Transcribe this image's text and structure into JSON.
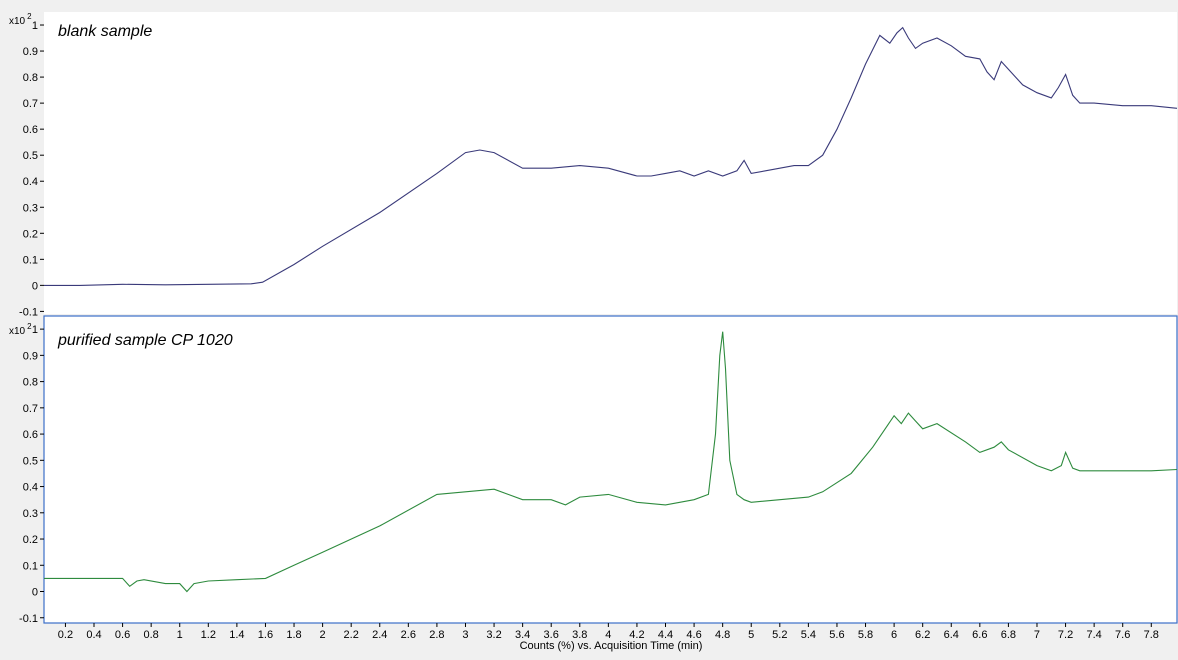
{
  "chart_data": [
    {
      "type": "line",
      "title": "blank sample",
      "y_multiplier_label": "x10",
      "y_multiplier_exp": "2",
      "xlim": [
        0.05,
        7.98
      ],
      "ylim": [
        -0.11,
        1.05
      ],
      "y_ticks": [
        -0.1,
        0,
        0.1,
        0.2,
        0.3,
        0.4,
        0.5,
        0.6,
        0.7,
        0.8,
        0.9,
        1
      ],
      "y_tick_labels": [
        "-0.1",
        "0",
        "0.1",
        "0.2",
        "0.3",
        "0.4",
        "0.5",
        "0.6",
        "0.7",
        "0.8",
        "0.9",
        "1"
      ],
      "line_color": "#3a3a7a",
      "series": [
        {
          "x": [
            0.05,
            0.3,
            0.6,
            0.9,
            1.2,
            1.5,
            1.58,
            1.8,
            2.0,
            2.4,
            2.8,
            3.0,
            3.1,
            3.2,
            3.4,
            3.6,
            3.8,
            4.0,
            4.2,
            4.3,
            4.4,
            4.5,
            4.6,
            4.7,
            4.8,
            4.9,
            4.95,
            5.0,
            5.1,
            5.2,
            5.3,
            5.4,
            5.5,
            5.6,
            5.7,
            5.8,
            5.9,
            5.97,
            6.02,
            6.06,
            6.1,
            6.15,
            6.2,
            6.3,
            6.4,
            6.5,
            6.6,
            6.65,
            6.7,
            6.75,
            6.8,
            6.9,
            7.0,
            7.1,
            7.15,
            7.2,
            7.25,
            7.3,
            7.4,
            7.6,
            7.8,
            7.98
          ],
          "y": [
            0.0,
            0.0,
            0.004,
            0.002,
            0.004,
            0.006,
            0.012,
            0.08,
            0.15,
            0.28,
            0.43,
            0.51,
            0.52,
            0.51,
            0.45,
            0.45,
            0.46,
            0.45,
            0.42,
            0.42,
            0.43,
            0.44,
            0.42,
            0.44,
            0.42,
            0.44,
            0.48,
            0.43,
            0.44,
            0.45,
            0.46,
            0.46,
            0.5,
            0.6,
            0.72,
            0.85,
            0.96,
            0.93,
            0.97,
            0.99,
            0.95,
            0.91,
            0.93,
            0.95,
            0.92,
            0.88,
            0.87,
            0.82,
            0.79,
            0.86,
            0.83,
            0.77,
            0.74,
            0.72,
            0.76,
            0.81,
            0.73,
            0.7,
            0.7,
            0.69,
            0.69,
            0.68
          ]
        }
      ]
    },
    {
      "type": "line",
      "title": "purified sample CP 1020",
      "y_multiplier_label": "x10",
      "y_multiplier_exp": "2",
      "xlim": [
        0.05,
        7.98
      ],
      "ylim": [
        -0.12,
        1.05
      ],
      "y_ticks": [
        -0.1,
        0,
        0.1,
        0.2,
        0.3,
        0.4,
        0.5,
        0.6,
        0.7,
        0.8,
        0.9,
        1
      ],
      "y_tick_labels": [
        "-0.1",
        "0",
        "0.1",
        "0.2",
        "0.3",
        "0.4",
        "0.5",
        "0.6",
        "0.7",
        "0.8",
        "0.9",
        "1"
      ],
      "x_ticks": [
        0.2,
        0.4,
        0.6,
        0.8,
        1,
        1.2,
        1.4,
        1.6,
        1.8,
        2,
        2.2,
        2.4,
        2.6,
        2.8,
        3,
        3.2,
        3.4,
        3.6,
        3.8,
        4,
        4.2,
        4.4,
        4.6,
        4.8,
        5,
        5.2,
        5.4,
        5.6,
        5.8,
        6,
        6.2,
        6.4,
        6.6,
        6.8,
        7,
        7.2,
        7.4,
        7.6,
        7.8
      ],
      "x_tick_labels": [
        "0.2",
        "0.4",
        "0.6",
        "0.8",
        "1",
        "1.2",
        "1.4",
        "1.6",
        "1.8",
        "2",
        "2.2",
        "2.4",
        "2.6",
        "2.8",
        "3",
        "3.2",
        "3.4",
        "3.6",
        "3.8",
        "4",
        "4.2",
        "4.4",
        "4.6",
        "4.8",
        "5",
        "5.2",
        "5.4",
        "5.6",
        "5.8",
        "6",
        "6.2",
        "6.4",
        "6.6",
        "6.8",
        "7",
        "7.2",
        "7.4",
        "7.6",
        "7.8"
      ],
      "xlabel": "Counts (%) vs. Acquisition Time (min)",
      "line_color": "#2e8b3e",
      "series": [
        {
          "x": [
            0.05,
            0.3,
            0.6,
            0.65,
            0.7,
            0.75,
            0.9,
            1.0,
            1.05,
            1.1,
            1.2,
            1.4,
            1.6,
            1.8,
            2.0,
            2.4,
            2.8,
            3.0,
            3.2,
            3.4,
            3.6,
            3.7,
            3.8,
            4.0,
            4.2,
            4.4,
            4.6,
            4.7,
            4.75,
            4.78,
            4.8,
            4.82,
            4.85,
            4.9,
            4.95,
            5.0,
            5.2,
            5.4,
            5.5,
            5.7,
            5.85,
            6.0,
            6.05,
            6.1,
            6.15,
            6.2,
            6.3,
            6.5,
            6.6,
            6.7,
            6.75,
            6.8,
            7.0,
            7.1,
            7.17,
            7.2,
            7.25,
            7.3,
            7.5,
            7.8,
            7.98
          ],
          "y": [
            0.05,
            0.05,
            0.05,
            0.02,
            0.04,
            0.045,
            0.03,
            0.03,
            0.0,
            0.03,
            0.04,
            0.045,
            0.05,
            0.1,
            0.15,
            0.25,
            0.37,
            0.38,
            0.39,
            0.35,
            0.35,
            0.33,
            0.36,
            0.37,
            0.34,
            0.33,
            0.35,
            0.37,
            0.6,
            0.9,
            0.99,
            0.85,
            0.5,
            0.37,
            0.35,
            0.34,
            0.35,
            0.36,
            0.38,
            0.45,
            0.55,
            0.67,
            0.64,
            0.68,
            0.65,
            0.62,
            0.64,
            0.57,
            0.53,
            0.55,
            0.57,
            0.54,
            0.48,
            0.46,
            0.48,
            0.53,
            0.47,
            0.46,
            0.46,
            0.46,
            0.465
          ]
        }
      ]
    }
  ]
}
